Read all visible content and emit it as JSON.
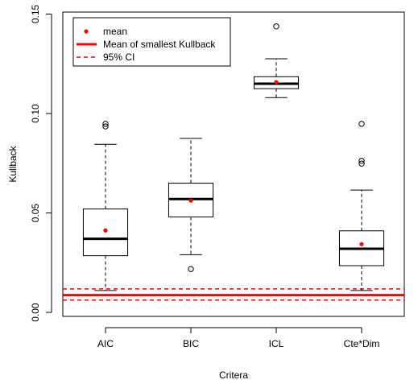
{
  "chart_data": {
    "type": "boxplot",
    "xlabel": "Critera",
    "ylabel": "Kullback",
    "ylim": [
      -0.002,
      0.151
    ],
    "yticks": [
      0.0,
      0.05,
      0.1,
      0.15
    ],
    "ytick_labels": [
      "0.00",
      "0.05",
      "0.10",
      "0.15"
    ],
    "categories": [
      "AIC",
      "BIC",
      "ICL",
      "Cte*Dim"
    ],
    "boxes": [
      {
        "whisker_low": 0.011,
        "q1": 0.0285,
        "median": 0.037,
        "q3": 0.052,
        "whisker_high": 0.0845,
        "mean": 0.0412,
        "outliers": [
          0.0935,
          0.0948
        ]
      },
      {
        "whisker_low": 0.029,
        "q1": 0.048,
        "median": 0.057,
        "q3": 0.065,
        "whisker_high": 0.0875,
        "mean": 0.0562,
        "outliers": [
          0.0218
        ]
      },
      {
        "whisker_low": 0.108,
        "q1": 0.1125,
        "median": 0.115,
        "q3": 0.1185,
        "whisker_high": 0.1275,
        "mean": 0.1158,
        "outliers": [
          0.1438
        ]
      },
      {
        "whisker_low": 0.011,
        "q1": 0.0235,
        "median": 0.032,
        "q3": 0.041,
        "whisker_high": 0.0615,
        "mean": 0.0343,
        "outliers": [
          0.0748,
          0.0762,
          0.0948
        ]
      }
    ],
    "reference_lines": {
      "mean": 0.0087,
      "ci_low": 0.0062,
      "ci_high": 0.0118
    },
    "legend": {
      "position": "top-left",
      "entries": [
        "mean",
        "Mean of smallest Kullback",
        "95% CI"
      ]
    },
    "colors": {
      "mean_marker": "#ff0000",
      "reference": "#ff0000",
      "box": "#000000"
    }
  }
}
